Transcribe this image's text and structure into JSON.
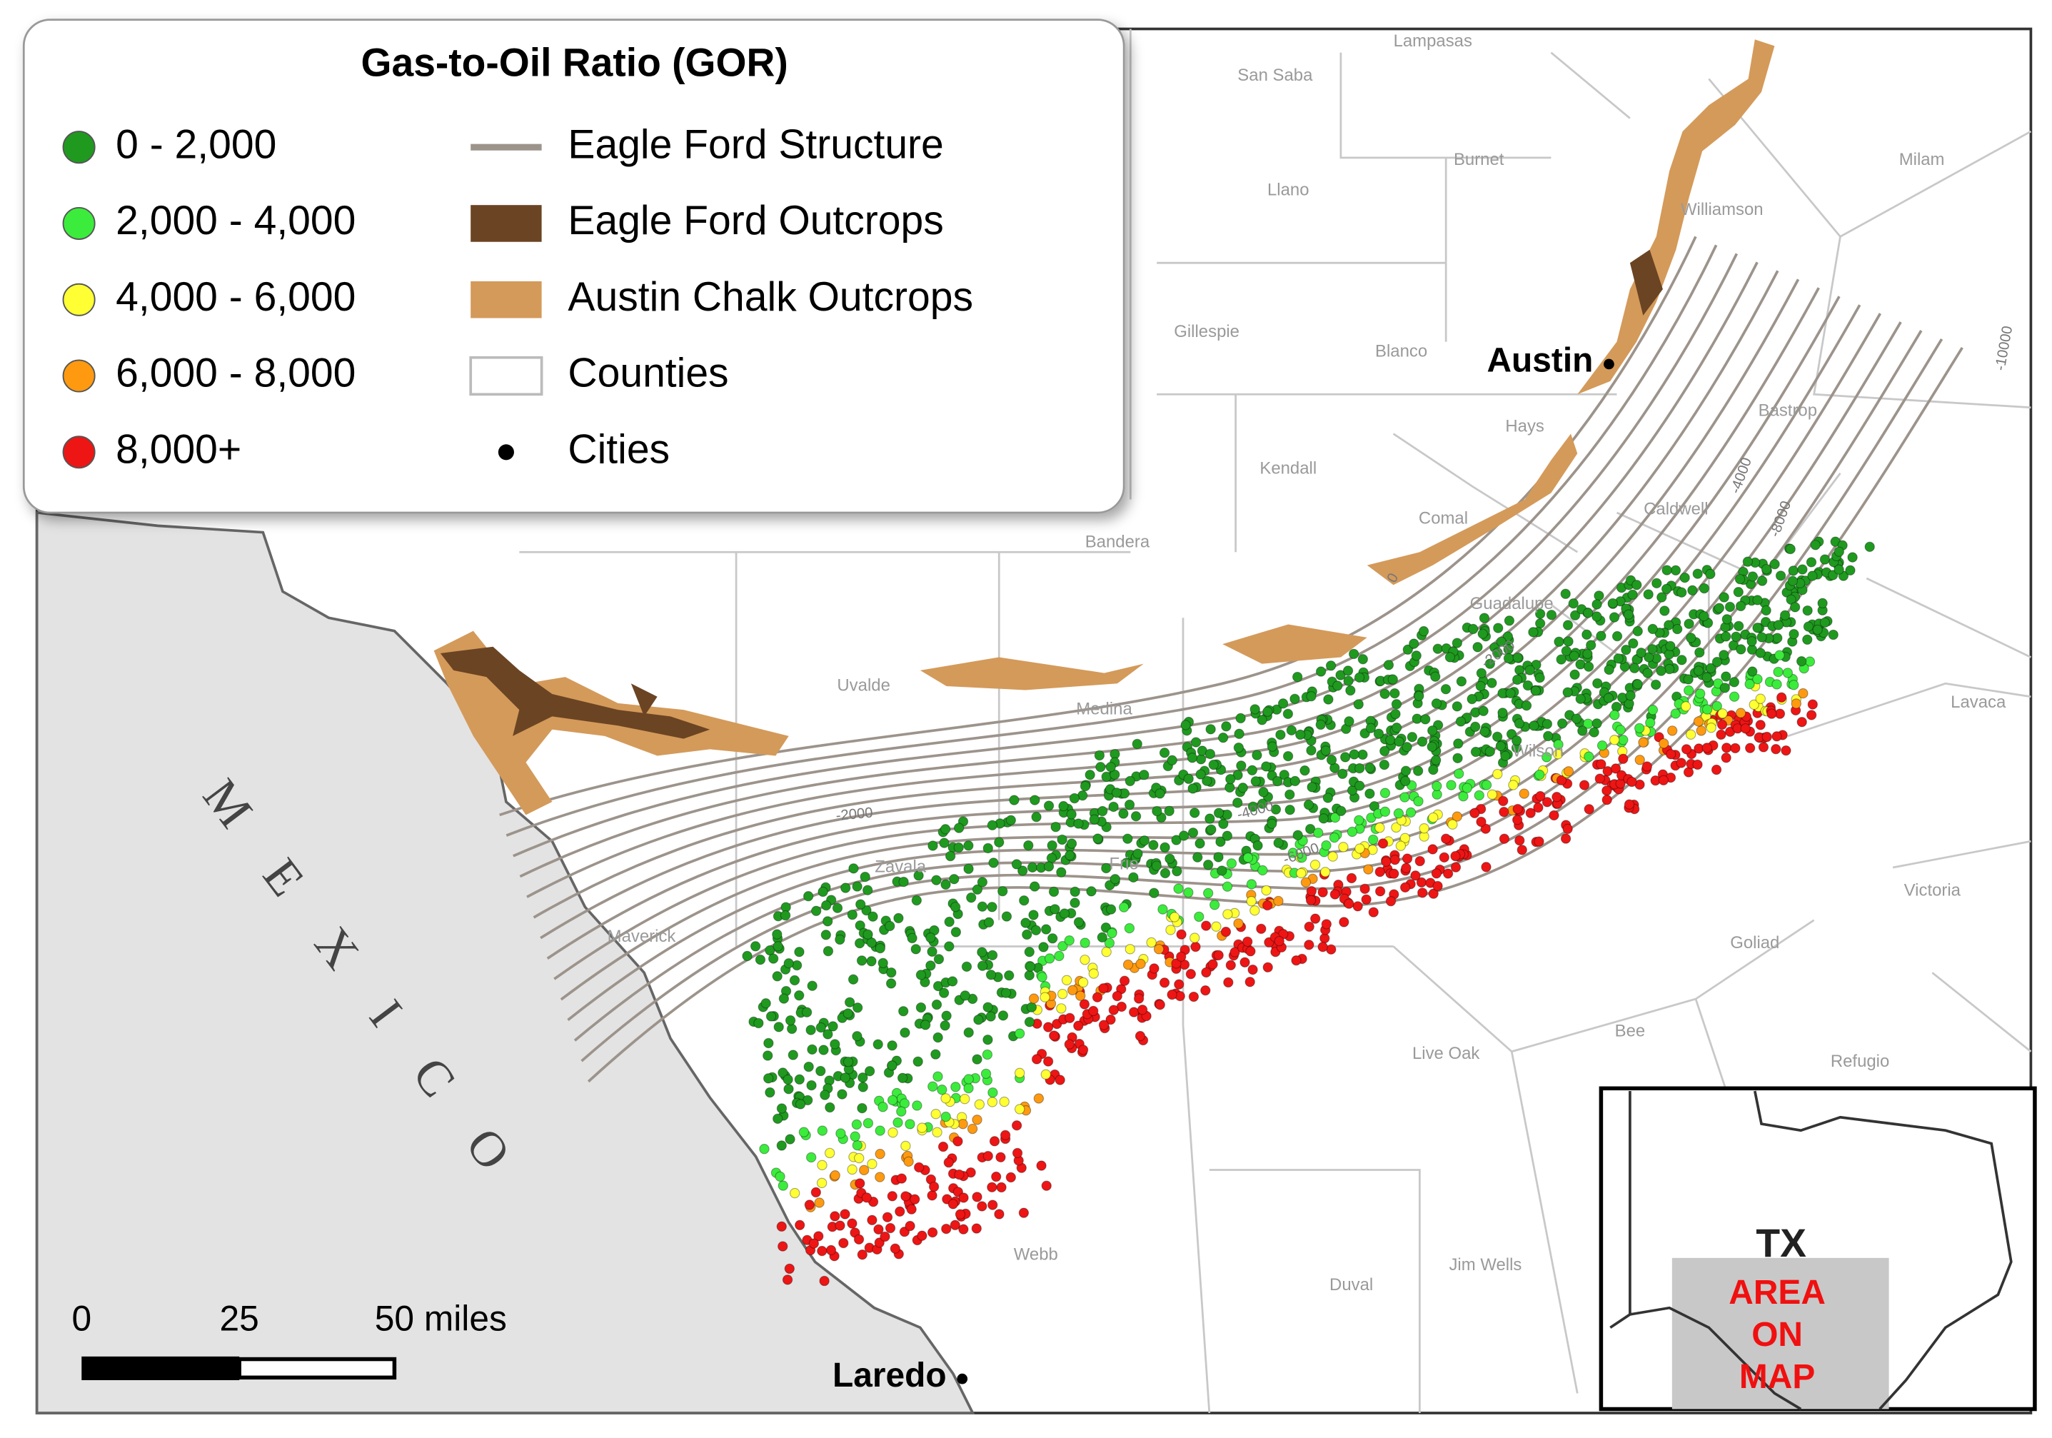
{
  "legend": {
    "title": "Gas-to-Oil Ratio (GOR)",
    "gor_classes": [
      {
        "label": "0 - 2,000",
        "color": "#1f9a1f"
      },
      {
        "label": "2,000 - 4,000",
        "color": "#3cec3c"
      },
      {
        "label": "4,000 - 6,000",
        "color": "#ffff33"
      },
      {
        "label": "6,000 - 8,000",
        "color": "#ff9a10"
      },
      {
        "label": "8,000+",
        "color": "#ee1515"
      }
    ],
    "layers": [
      {
        "label": "Eagle Ford Structure"
      },
      {
        "label": "Eagle Ford Outcrops"
      },
      {
        "label": "Austin Chalk Outcrops"
      },
      {
        "label": "Counties"
      },
      {
        "label": "Cities"
      }
    ]
  },
  "cities": [
    {
      "name": "Austin"
    },
    {
      "name": "Laredo"
    }
  ],
  "country_label": "MEXICO",
  "counties": [
    "San Saba",
    "Lampasas",
    "Burnet",
    "Llano",
    "Williamson",
    "Milam",
    "Gillespie",
    "Blanco",
    "Hays",
    "Bastrop",
    "Kendall",
    "Comal",
    "Caldwell",
    "Bandera",
    "Guadalupe",
    "Uvalde",
    "Medina",
    "Wilson",
    "Zavala",
    "Frio",
    "Maverick",
    "Live Oak",
    "Goliad",
    "Victoria",
    "Bee",
    "Refugio",
    "Webb",
    "Duval",
    "Jim Wells",
    "Lavaca"
  ],
  "contour_labels": [
    "0",
    "-2000",
    "-4000",
    "-6000",
    "-2000",
    "-4000",
    "-8000",
    "-10000"
  ],
  "scale_bar": {
    "ticks": [
      "0",
      "25",
      "50 miles"
    ]
  },
  "inset": {
    "state": "TX",
    "area_label": [
      "AREA",
      "ON",
      "MAP"
    ]
  }
}
